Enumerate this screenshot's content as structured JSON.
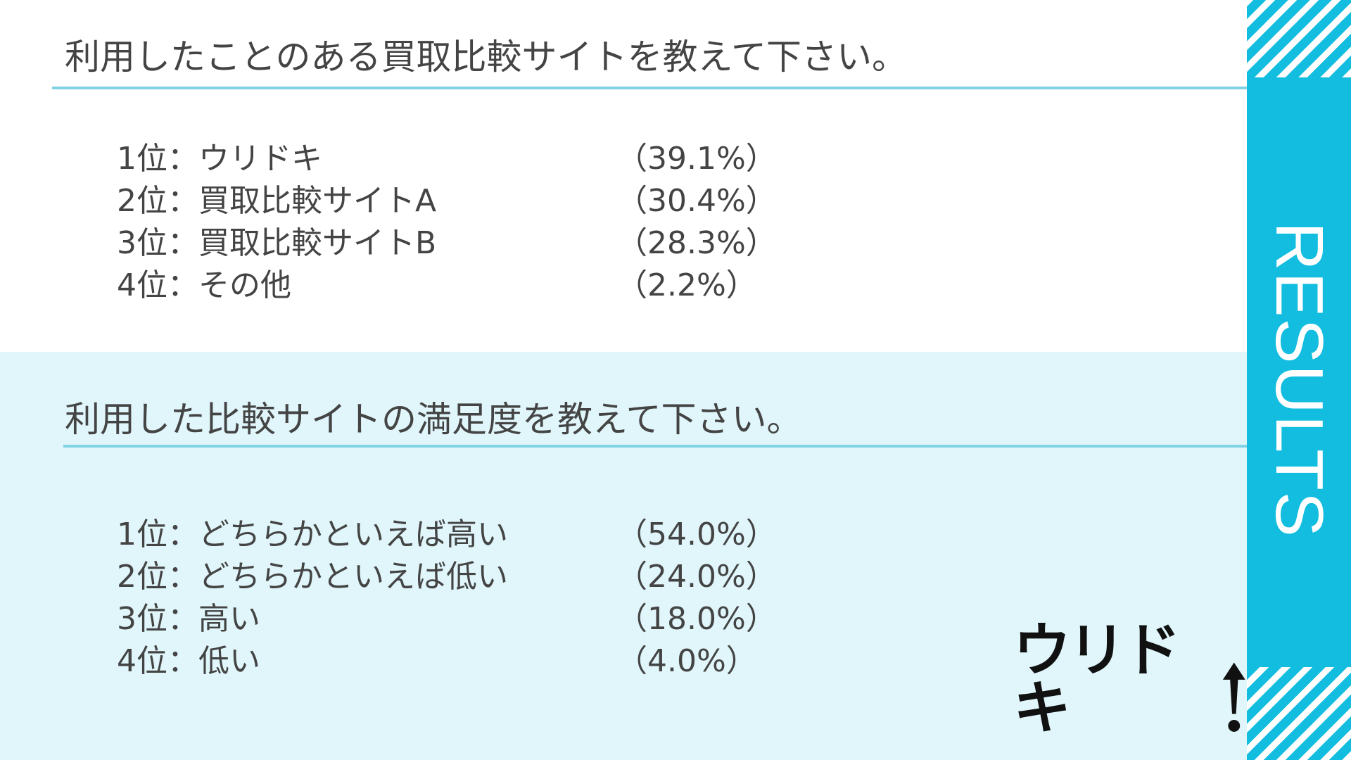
{
  "section1": {
    "title": "利用したことのある買取比較サイトを教えて下さい。",
    "items": [
      {
        "label": "1位：ウリドキ",
        "percent": "（39.1%）"
      },
      {
        "label": "2位：買取比較サイトA",
        "percent": "（30.4%）"
      },
      {
        "label": "3位：買取比較サイトB",
        "percent": "（28.3%）"
      },
      {
        "label": "4位：その他",
        "percent": "（2.2%）"
      }
    ]
  },
  "section2": {
    "title": "利用した比較サイトの満足度を教えて下さい。",
    "items": [
      {
        "label": "1位：どちらかといえば高い",
        "percent": "（54.0%）"
      },
      {
        "label": "2位：どちらかといえば低い",
        "percent": "（24.0%）"
      },
      {
        "label": "3位：高い",
        "percent": "（18.0%）"
      },
      {
        "label": "4位：低い",
        "percent": "（4.0%）"
      }
    ]
  },
  "sidebar": {
    "label": "RESULTS"
  },
  "logo": {
    "text": "ウリドキ",
    "icon": "exclamation-arrow-icon"
  },
  "colors": {
    "accent": "#13bddf",
    "rule": "#7fd3e5",
    "section_bg": "#e0f6fb",
    "text": "#444444"
  }
}
